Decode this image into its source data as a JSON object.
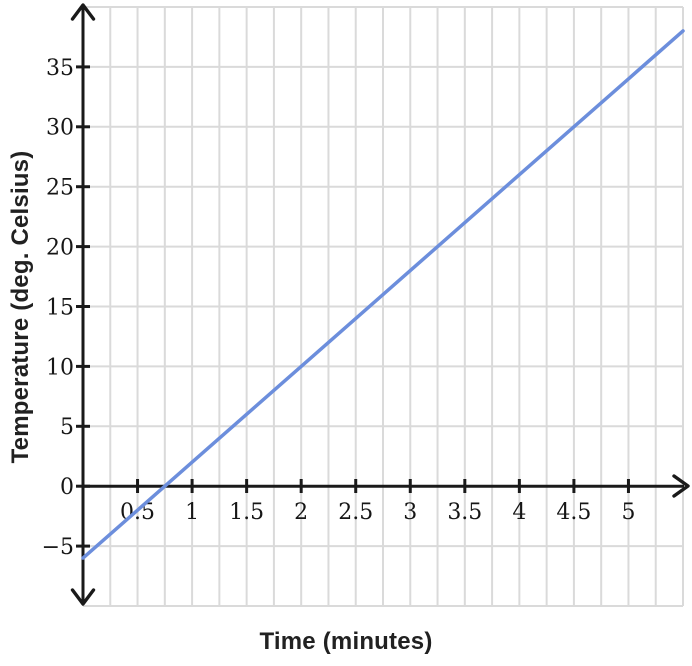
{
  "chart_data": {
    "type": "line",
    "title": "",
    "xlabel": "Time (minutes)",
    "ylabel": "Temperature (deg. Celsius)",
    "xlim": [
      0,
      5.5
    ],
    "ylim": [
      -10,
      40
    ],
    "x_tick_values": [
      0.5,
      1,
      1.5,
      2,
      2.5,
      3,
      3.5,
      4,
      4.5,
      5
    ],
    "x_tick_labels": [
      "0.5",
      "1",
      "1.5",
      "2",
      "2.5",
      "3",
      "3.5",
      "4",
      "4.5",
      "5"
    ],
    "y_tick_values": [
      -5,
      0,
      5,
      10,
      15,
      20,
      25,
      30,
      35
    ],
    "y_tick_labels": [
      "−5",
      "0",
      "5",
      "10",
      "15",
      "20",
      "25",
      "30",
      "35"
    ],
    "grid": {
      "show": true,
      "x_step": 0.25,
      "y_step": 5,
      "color": "#dadada",
      "width": 2
    },
    "axes": {
      "color": "#1a1a1a",
      "width": 3,
      "x_arrow": "right",
      "y_arrow": "both"
    },
    "legend": {
      "show": false
    },
    "series": [
      {
        "name": "temperature",
        "color": "#6c8edc",
        "width": 3.5,
        "x": [
          0,
          1,
          2,
          3,
          4,
          5,
          5.5
        ],
        "y": [
          -6,
          2,
          10,
          18,
          26,
          34,
          38
        ]
      }
    ],
    "line_x_intercept": 0.75,
    "line_y_intercept": -6
  }
}
